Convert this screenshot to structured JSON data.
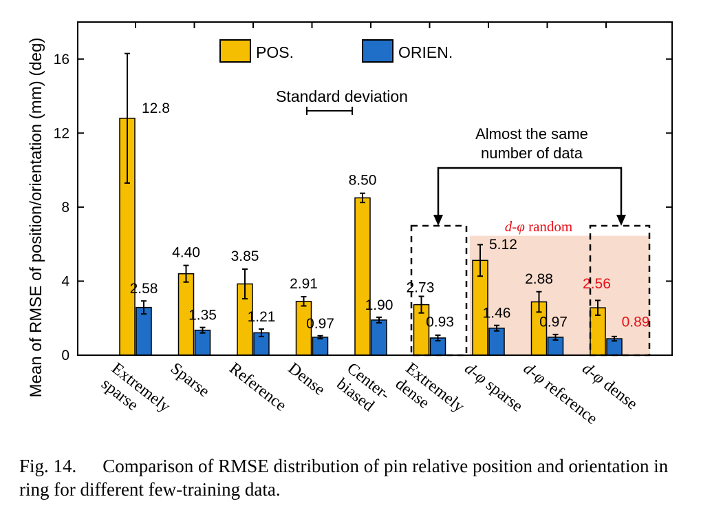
{
  "chart_data": {
    "type": "bar",
    "ylabel": "Mean of RMSE of position/orientation (mm) (deg)",
    "ylim": [
      0,
      18
    ],
    "yticks": [
      0,
      4,
      8,
      12,
      16
    ],
    "categories": [
      {
        "lines": [
          "Extremely",
          "sparse"
        ],
        "italic": false
      },
      {
        "lines": [
          "Sparse"
        ],
        "italic": false
      },
      {
        "lines": [
          "Reference"
        ],
        "italic": false
      },
      {
        "lines": [
          "Dense"
        ],
        "italic": false
      },
      {
        "lines": [
          "Center-",
          "biased"
        ],
        "italic": false
      },
      {
        "lines": [
          "Extremely",
          "dense"
        ],
        "italic": false
      },
      {
        "lines": [
          "d-φ sparse"
        ],
        "italic": true
      },
      {
        "lines": [
          "d-φ reference"
        ],
        "italic": true
      },
      {
        "lines": [
          "d-φ dense"
        ],
        "italic": true
      }
    ],
    "series": [
      {
        "name": "POS.",
        "color": "#F5BE00",
        "values": [
          12.8,
          4.4,
          3.85,
          2.91,
          8.5,
          2.73,
          5.12,
          2.88,
          2.56
        ],
        "labels": [
          "12.8",
          "4.40",
          "3.85",
          "2.91",
          "8.50",
          "2.73",
          "5.12",
          "2.88",
          "2.56"
        ],
        "std": [
          3.5,
          0.45,
          0.8,
          0.25,
          0.25,
          0.45,
          0.85,
          0.55,
          0.4
        ]
      },
      {
        "name": "ORIEN.",
        "color": "#1F6FC9",
        "values": [
          2.58,
          1.35,
          1.21,
          0.97,
          1.9,
          0.93,
          1.46,
          0.97,
          0.89
        ],
        "labels": [
          "2.58",
          "1.35",
          "1.21",
          "0.97",
          "1.90",
          "0.93",
          "1.46",
          "0.97",
          "0.89"
        ],
        "std": [
          0.35,
          0.15,
          0.2,
          0.08,
          0.15,
          0.15,
          0.15,
          0.15,
          0.12
        ]
      }
    ],
    "highlight_label_index": 8,
    "highlight_color": "#E8101A",
    "shaded_region_color": "#F8DCCD",
    "annotations": {
      "std_label": "Standard deviation",
      "same_data": [
        "Almost the same",
        "number of data"
      ],
      "random_prefix": "d-φ",
      "random_suffix": " random"
    },
    "legend_position": "top-center",
    "grid": false
  },
  "caption": {
    "label": "Fig. 14.",
    "text": "Comparison of RMSE distribution of pin relative position and orientation in ring for different few-training data."
  }
}
